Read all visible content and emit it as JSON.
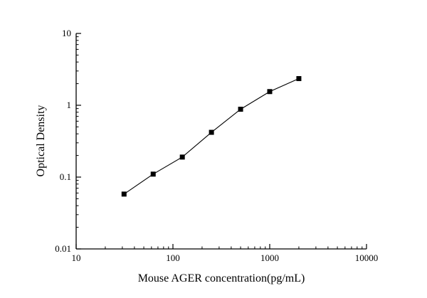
{
  "figure": {
    "background": "#ffffff"
  },
  "chart_data": {
    "type": "line",
    "title": "",
    "xlabel": "Mouse AGER concentration(pg/mL)",
    "ylabel": "Optical Density",
    "xscale": "log",
    "yscale": "log",
    "xlim": [
      10,
      10000
    ],
    "ylim": [
      0.01,
      10
    ],
    "grid": false,
    "legend": false,
    "marker": "filled-square",
    "line_color": "#000000",
    "marker_color": "#000000",
    "x": [
      31.25,
      62.5,
      125,
      250,
      500,
      1000,
      2000
    ],
    "y": [
      0.058,
      0.11,
      0.19,
      0.42,
      0.88,
      1.55,
      2.35
    ],
    "x_ticks": [
      {
        "value": 10,
        "label": "10"
      },
      {
        "value": 100,
        "label": "100"
      },
      {
        "value": 1000,
        "label": "1000"
      },
      {
        "value": 10000,
        "label": "10000"
      }
    ],
    "y_ticks": [
      {
        "value": 0.01,
        "label": "0.01"
      },
      {
        "value": 0.1,
        "label": "0.1"
      },
      {
        "value": 1,
        "label": "1"
      },
      {
        "value": 10,
        "label": "10"
      }
    ]
  }
}
